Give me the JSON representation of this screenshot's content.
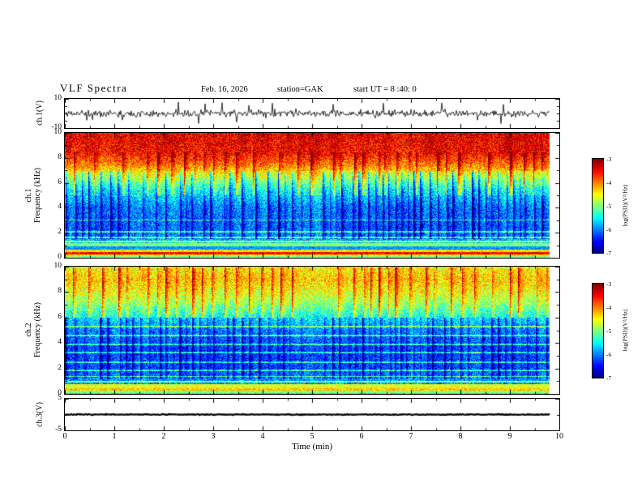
{
  "title": "VLF Spectra",
  "header": {
    "date": "Feb. 16, 2026",
    "station": "station=GAK",
    "start_ut": "start UT =  8 :40: 0"
  },
  "x_axis": {
    "label": "Time (min)",
    "min": 0,
    "max": 10,
    "major_ticks": [
      0,
      1,
      2,
      3,
      4,
      5,
      6,
      7,
      8,
      9,
      10
    ],
    "minor_tick_step": 0.5,
    "data_end_min": 9.8
  },
  "colorbars": [
    {
      "label": "log(PSD)(V²/Hz)",
      "min": -7,
      "max": -3,
      "ticks": [
        -3,
        -4,
        -5,
        -6,
        -7
      ],
      "colormap": "jet"
    },
    {
      "label": "log(PSD)(V²/Hz)",
      "min": -7,
      "max": -3,
      "ticks": [
        -3,
        -4,
        -5,
        -6,
        -7
      ],
      "colormap": "jet"
    }
  ],
  "chart_data": [
    {
      "id": "ch1_waveform",
      "type": "line",
      "ylabel": "ch.1(V)",
      "ylim": [
        -10,
        10
      ],
      "ytick_labels": [
        10,
        -10
      ],
      "series_desc": "broadband VLF noise, mean 0 V, typical amplitude ±3-6 V with impulsive spikes to ±9 V",
      "noise_amp_V": 2.1,
      "spike_prob": 0.025,
      "seed": 11
    },
    {
      "id": "ch1_spectrogram",
      "type": "heatmap",
      "channel_label": "ch.1",
      "ylabel": "Frequency (kHz)",
      "ylim": [
        0,
        10
      ],
      "ytick_labels": [
        10,
        8,
        6,
        4,
        2,
        0
      ],
      "z_label": "log(PSD)(V²/Hz)",
      "zlim": [
        -7,
        -3
      ],
      "profile_f_kHz": [
        10,
        8.5,
        7.5,
        6.5,
        5.5,
        4,
        2.5,
        1.6,
        1.2
      ],
      "profile_logpsd": [
        -3.4,
        -3.5,
        -4.0,
        -4.7,
        -5.4,
        -5.95,
        -6.05,
        -5.9,
        -5.6
      ],
      "bottom_bands": [
        {
          "f_lo": 0.95,
          "f_hi": 1.2,
          "logpsd": -5.0
        },
        {
          "f_lo": 0.7,
          "f_hi": 0.95,
          "logpsd": -5.9
        },
        {
          "f_lo": 0.5,
          "f_hi": 0.7,
          "logpsd": -4.4
        },
        {
          "f_lo": 0.32,
          "f_hi": 0.5,
          "logpsd": -3.5
        },
        {
          "f_lo": 0.15,
          "f_hi": 0.32,
          "logpsd": -4.4
        },
        {
          "f_lo": 0.0,
          "f_hi": 0.15,
          "logpsd": -5.0
        }
      ],
      "line_features_kHz": [
        1.35,
        1.65,
        2.1,
        3.05
      ],
      "texture": {
        "streak_zone_kHz": [
          1.5,
          7
        ],
        "streak_depth_log": 1.35,
        "bright_zone_kHz": [
          5,
          8.5
        ],
        "seed": 42
      },
      "features": "solid red band 8-10 kHz, yellow-green transition 6-8 kHz, blue 1-6 kHz with dense dark vertical streaks, bright red/yellow horizontal bands below 1 kHz"
    },
    {
      "id": "ch2_spectrogram",
      "type": "heatmap",
      "channel_label": "ch.2",
      "ylabel": "Frequency (kHz)",
      "ylim": [
        0,
        10
      ],
      "ytick_labels": [
        10,
        8,
        6,
        4,
        2,
        0
      ],
      "z_label": "log(PSD)(V²/Hz)",
      "zlim": [
        -7,
        -3
      ],
      "profile_f_kHz": [
        10,
        9,
        8,
        7,
        6,
        5,
        3.5,
        2,
        1.3
      ],
      "profile_logpsd": [
        -4.5,
        -4.3,
        -4.6,
        -5.0,
        -5.5,
        -5.9,
        -6.2,
        -6.15,
        -5.9
      ],
      "bottom_bands": [
        {
          "f_lo": 0.5,
          "f_hi": 0.8,
          "logpsd": -4.6
        },
        {
          "f_lo": 0.3,
          "f_hi": 0.5,
          "logpsd": -4.3
        },
        {
          "f_lo": 0.12,
          "f_hi": 0.3,
          "logpsd": -5.0
        },
        {
          "f_lo": 0.0,
          "f_hi": 0.12,
          "logpsd": -5.6
        }
      ],
      "line_features_kHz": [
        1.0,
        1.4,
        1.9,
        2.5,
        3.3,
        3.9,
        4.6,
        5.3
      ],
      "texture": {
        "streak_zone_kHz": [
          1.2,
          6
        ],
        "streak_depth_log": 1.2,
        "bright_zone_kHz": [
          6,
          10
        ],
        "seed": 1337
      },
      "features": "speckled green-yellow band 7-10 kHz, cyan-green transition 5-7 kHz, dark blue below 5 kHz with vertical streaks and thin cyan horizontal lines, green-yellow band below 0.8 kHz"
    },
    {
      "id": "ch3_waveform",
      "type": "line",
      "ylabel": "ch.3(V)",
      "ylim": [
        -5,
        5
      ],
      "ytick_labels": [
        5,
        -5
      ],
      "series_desc": "constant ~0 V flat dark trace",
      "noise_amp_V": 0.12,
      "spike_prob": 0,
      "seed": 7
    }
  ]
}
